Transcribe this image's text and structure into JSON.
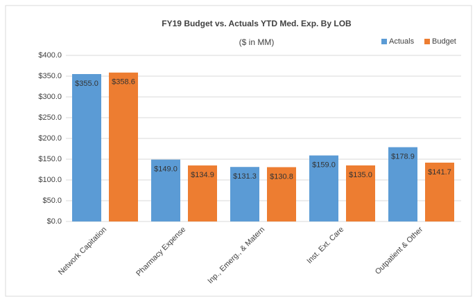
{
  "chart_data": {
    "type": "bar",
    "title": "FY19 Budget vs. Actuals YTD Med. Exp. By LOB",
    "subtitle": "($ in MM)",
    "categories": [
      "Network Capitation",
      "Pharmacy Expense",
      "Inp., Emerg., & Matern",
      "Inst. Ext. Care",
      "Outpatient & Other"
    ],
    "series": [
      {
        "name": "Actuals",
        "color": "#5b9bd5",
        "values": [
          355.0,
          149.0,
          131.3,
          159.0,
          178.9
        ],
        "value_labels": [
          "$355.0",
          "$149.0",
          "$131.3",
          "$159.0",
          "$178.9"
        ]
      },
      {
        "name": "Budget",
        "color": "#ed7d31",
        "values": [
          358.6,
          134.9,
          130.8,
          135.0,
          141.7
        ],
        "value_labels": [
          "$358.6",
          "$134.9",
          "$130.8",
          "$135.0",
          "$141.7"
        ]
      }
    ],
    "ylim": [
      0,
      400
    ],
    "yticks": [
      {
        "value": 0,
        "label": "$0.0"
      },
      {
        "value": 50,
        "label": "$50.0"
      },
      {
        "value": 100,
        "label": "$100.0"
      },
      {
        "value": 150,
        "label": "$150.0"
      },
      {
        "value": 200,
        "label": "$200.0"
      },
      {
        "value": 250,
        "label": "$250.0"
      },
      {
        "value": 300,
        "label": "$300.0"
      },
      {
        "value": 350,
        "label": "$350.0"
      },
      {
        "value": 400,
        "label": "$400.0"
      }
    ],
    "grid": true,
    "legend": "top-right"
  }
}
